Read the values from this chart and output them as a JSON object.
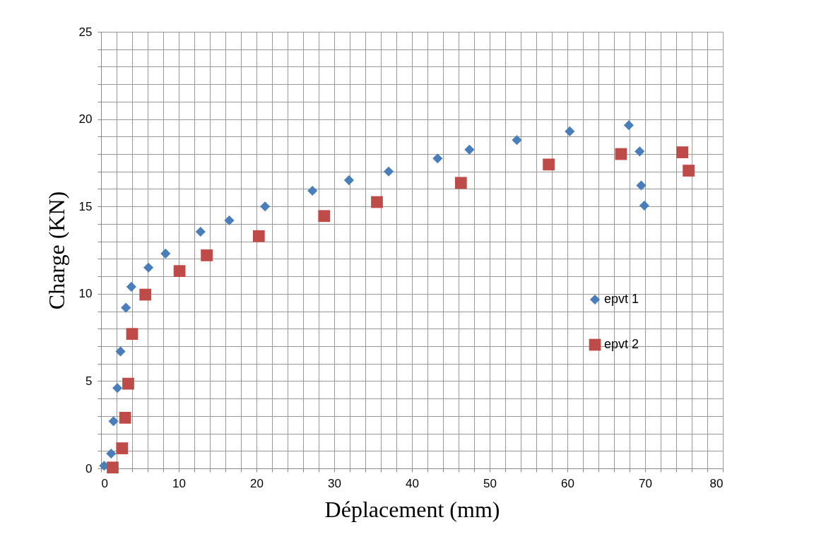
{
  "chart_data": {
    "type": "scatter",
    "xlabel": "Déplacement (mm)",
    "ylabel": "Charge (KN)",
    "xlim": [
      0,
      80
    ],
    "ylim": [
      0,
      25
    ],
    "xticks": [
      0,
      {
        "value": 2,
        "label": null
      },
      {
        "value": 4,
        "label": null
      },
      {
        "value": 6,
        "label": null
      },
      {
        "value": 8,
        "label": null
      },
      10,
      {
        "value": 12,
        "label": null
      },
      {
        "value": 14,
        "label": null
      },
      {
        "value": 16,
        "label": null
      },
      {
        "value": 18,
        "label": null
      },
      20,
      {
        "value": 22,
        "label": null
      },
      {
        "value": 24,
        "label": null
      },
      {
        "value": 26,
        "label": null
      },
      {
        "value": 28,
        "label": null
      },
      30,
      {
        "value": 32,
        "label": null
      },
      {
        "value": 34,
        "label": null
      },
      {
        "value": 36,
        "label": null
      },
      {
        "value": 38,
        "label": null
      },
      40,
      {
        "value": 42,
        "label": null
      },
      {
        "value": 44,
        "label": null
      },
      {
        "value": 46,
        "label": null
      },
      {
        "value": 48,
        "label": null
      },
      50,
      {
        "value": 52,
        "label": null
      },
      {
        "value": 54,
        "label": null
      },
      {
        "value": 56,
        "label": null
      },
      {
        "value": 58,
        "label": null
      },
      60,
      {
        "value": 62,
        "label": null
      },
      {
        "value": 64,
        "label": null
      },
      {
        "value": 66,
        "label": null
      },
      {
        "value": 68,
        "label": null
      },
      70,
      {
        "value": 72,
        "label": null
      },
      {
        "value": 74,
        "label": null
      },
      {
        "value": 76,
        "label": null
      },
      {
        "value": 78,
        "label": null
      },
      80
    ],
    "yticks": [
      0,
      {
        "value": 1,
        "label": null
      },
      {
        "value": 2,
        "label": null
      },
      {
        "value": 3,
        "label": null
      },
      {
        "value": 4,
        "label": null
      },
      5,
      {
        "value": 6,
        "label": null
      },
      {
        "value": 7,
        "label": null
      },
      {
        "value": 8,
        "label": null
      },
      {
        "value": 9,
        "label": null
      },
      10,
      {
        "value": 11,
        "label": null
      },
      {
        "value": 12,
        "label": null
      },
      {
        "value": 13,
        "label": null
      },
      {
        "value": 14,
        "label": null
      },
      15,
      {
        "value": 16,
        "label": null
      },
      {
        "value": 17,
        "label": null
      },
      {
        "value": 18,
        "label": null
      },
      {
        "value": 19,
        "label": null
      },
      20,
      {
        "value": 21,
        "label": null
      },
      {
        "value": 22,
        "label": null
      },
      {
        "value": 23,
        "label": null
      },
      {
        "value": 24,
        "label": null
      },
      25
    ],
    "grid": true,
    "legend": "right",
    "series": [
      {
        "name": "epvt 1",
        "color": "#4a7ebb",
        "marker": "diamond",
        "x": [
          0.4,
          1.3,
          1.6,
          2.1,
          2.5,
          3.2,
          3.9,
          6.1,
          8.3,
          12.8,
          16.5,
          21.1,
          27.2,
          31.9,
          37.0,
          43.3,
          47.4,
          53.5,
          60.3,
          67.9,
          69.3,
          69.5,
          69.9
        ],
        "values": [
          0.15,
          0.85,
          2.7,
          4.6,
          6.7,
          9.2,
          10.4,
          11.5,
          12.3,
          13.55,
          14.2,
          15.0,
          15.9,
          16.5,
          17.0,
          17.75,
          18.25,
          18.8,
          19.3,
          19.65,
          18.15,
          16.2,
          15.05
        ]
      },
      {
        "name": "epvt 2",
        "color": "#be4b48",
        "marker": "square",
        "x": [
          1.5,
          2.7,
          3.1,
          3.5,
          4.0,
          5.7,
          10.1,
          13.6,
          20.3,
          28.7,
          35.5,
          46.3,
          57.6,
          66.9,
          74.8,
          75.6
        ],
        "values": [
          0.05,
          1.15,
          2.9,
          4.85,
          7.7,
          9.95,
          11.3,
          12.2,
          13.3,
          14.45,
          15.25,
          16.35,
          17.4,
          18.0,
          18.1,
          17.05
        ]
      }
    ]
  }
}
